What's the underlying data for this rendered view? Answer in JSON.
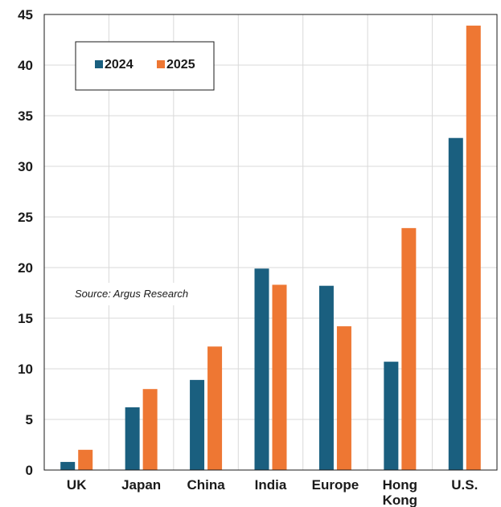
{
  "chart_data": {
    "type": "bar",
    "categories": [
      "UK",
      "Japan",
      "China",
      "India",
      "Europe",
      "Hong Kong",
      "U.S."
    ],
    "series": [
      {
        "name": "2024",
        "color": "#1a5f7f",
        "values": [
          0.8,
          6.2,
          8.9,
          19.9,
          18.2,
          10.7,
          32.8
        ]
      },
      {
        "name": "2025",
        "color": "#ee7733",
        "values": [
          2.0,
          8.0,
          12.2,
          18.3,
          14.2,
          23.9,
          43.9
        ]
      }
    ],
    "ylim": [
      0,
      45
    ],
    "yticks": [
      0,
      5,
      10,
      15,
      20,
      25,
      30,
      35,
      40,
      45
    ],
    "grid": true,
    "legend_position": "top-left",
    "annotation": "Source: Argus Research"
  }
}
